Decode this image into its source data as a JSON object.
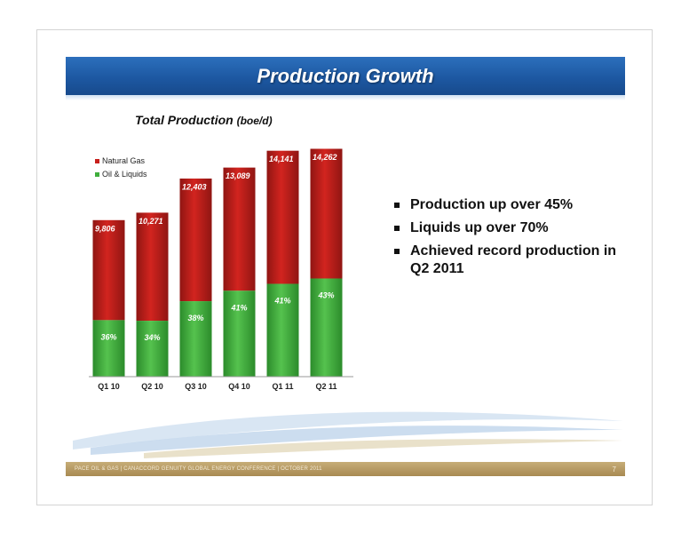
{
  "slide": {
    "title": "Production Growth",
    "footer": "PACE OIL & GAS  |  CANACCORD GENUITY GLOBAL ENERGY CONFERENCE  |  OCTOBER 2011",
    "page_number": "7"
  },
  "bullets": [
    "Production up over 45%",
    "Liquids up over 70%",
    "Achieved record production in Q2 2011"
  ],
  "colors": {
    "natural_gas": "#c8201c",
    "oil_liquids": "#3fae3c",
    "title_bar": "#1d58a2",
    "footer_bar": "#b39660"
  },
  "chart_data": {
    "type": "bar",
    "stacked": true,
    "title": "Total Production",
    "title_unit": "(boe/d)",
    "categories": [
      "Q1 10",
      "Q2 10",
      "Q3 10",
      "Q4 10",
      "Q1 11",
      "Q2 11"
    ],
    "totals": [
      9806,
      10271,
      12403,
      13089,
      14141,
      14262
    ],
    "total_labels": [
      "9,806",
      "10,271",
      "12,403",
      "13,089",
      "14,141",
      "14,262"
    ],
    "liquids_pct": [
      36,
      34,
      38,
      41,
      41,
      43
    ],
    "pct_labels": [
      "36%",
      "34%",
      "38%",
      "41%",
      "41%",
      "43%"
    ],
    "series": [
      {
        "name": "Natural Gas",
        "share": "remainder"
      },
      {
        "name": "Oil & Liquids",
        "share": "liquids_pct"
      }
    ],
    "legend": "top-left",
    "grid": false
  }
}
